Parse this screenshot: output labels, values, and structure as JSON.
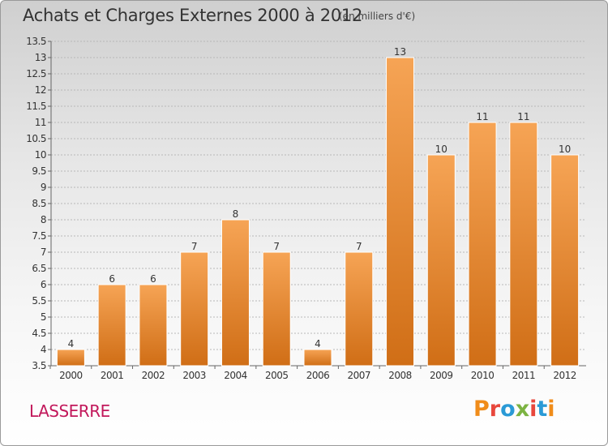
{
  "header": {
    "title": "Achats et Charges Externes 2000 à 2012",
    "subtitle": "(en milliers d'€)"
  },
  "footer": {
    "place": "LASSERRE",
    "logo_text": "Proxiti",
    "logo_colors": [
      "#f08c1a",
      "#e8473c",
      "#2a9ad6",
      "#7cb342",
      "#e8473c",
      "#2a9ad6",
      "#f08c1a"
    ]
  },
  "chart_data": {
    "type": "bar",
    "categories": [
      "2000",
      "2001",
      "2002",
      "2003",
      "2004",
      "2005",
      "2006",
      "2007",
      "2008",
      "2009",
      "2010",
      "2011",
      "2012"
    ],
    "values": [
      4,
      6,
      6,
      7,
      8,
      7,
      4,
      7,
      13,
      10,
      11,
      11,
      10
    ],
    "data_labels": [
      "4",
      "6",
      "6",
      "7",
      "8",
      "7",
      "4",
      "7",
      "13",
      "10",
      "11",
      "11",
      "10"
    ],
    "yticks": [
      "3.5",
      "4",
      "4.5",
      "5",
      "5.5",
      "6",
      "6.5",
      "7",
      "7.5",
      "8",
      "8.5",
      "9",
      "9.5",
      "10",
      "10.5",
      "11",
      "11.5",
      "12",
      "12.5",
      "13",
      "13.5"
    ],
    "ylim": [
      3.5,
      13.5
    ],
    "grid": "horizontal",
    "bar_color_top": "#f6a455",
    "bar_color_bottom": "#d06e16",
    "grid_color": "#b8b8b8"
  }
}
